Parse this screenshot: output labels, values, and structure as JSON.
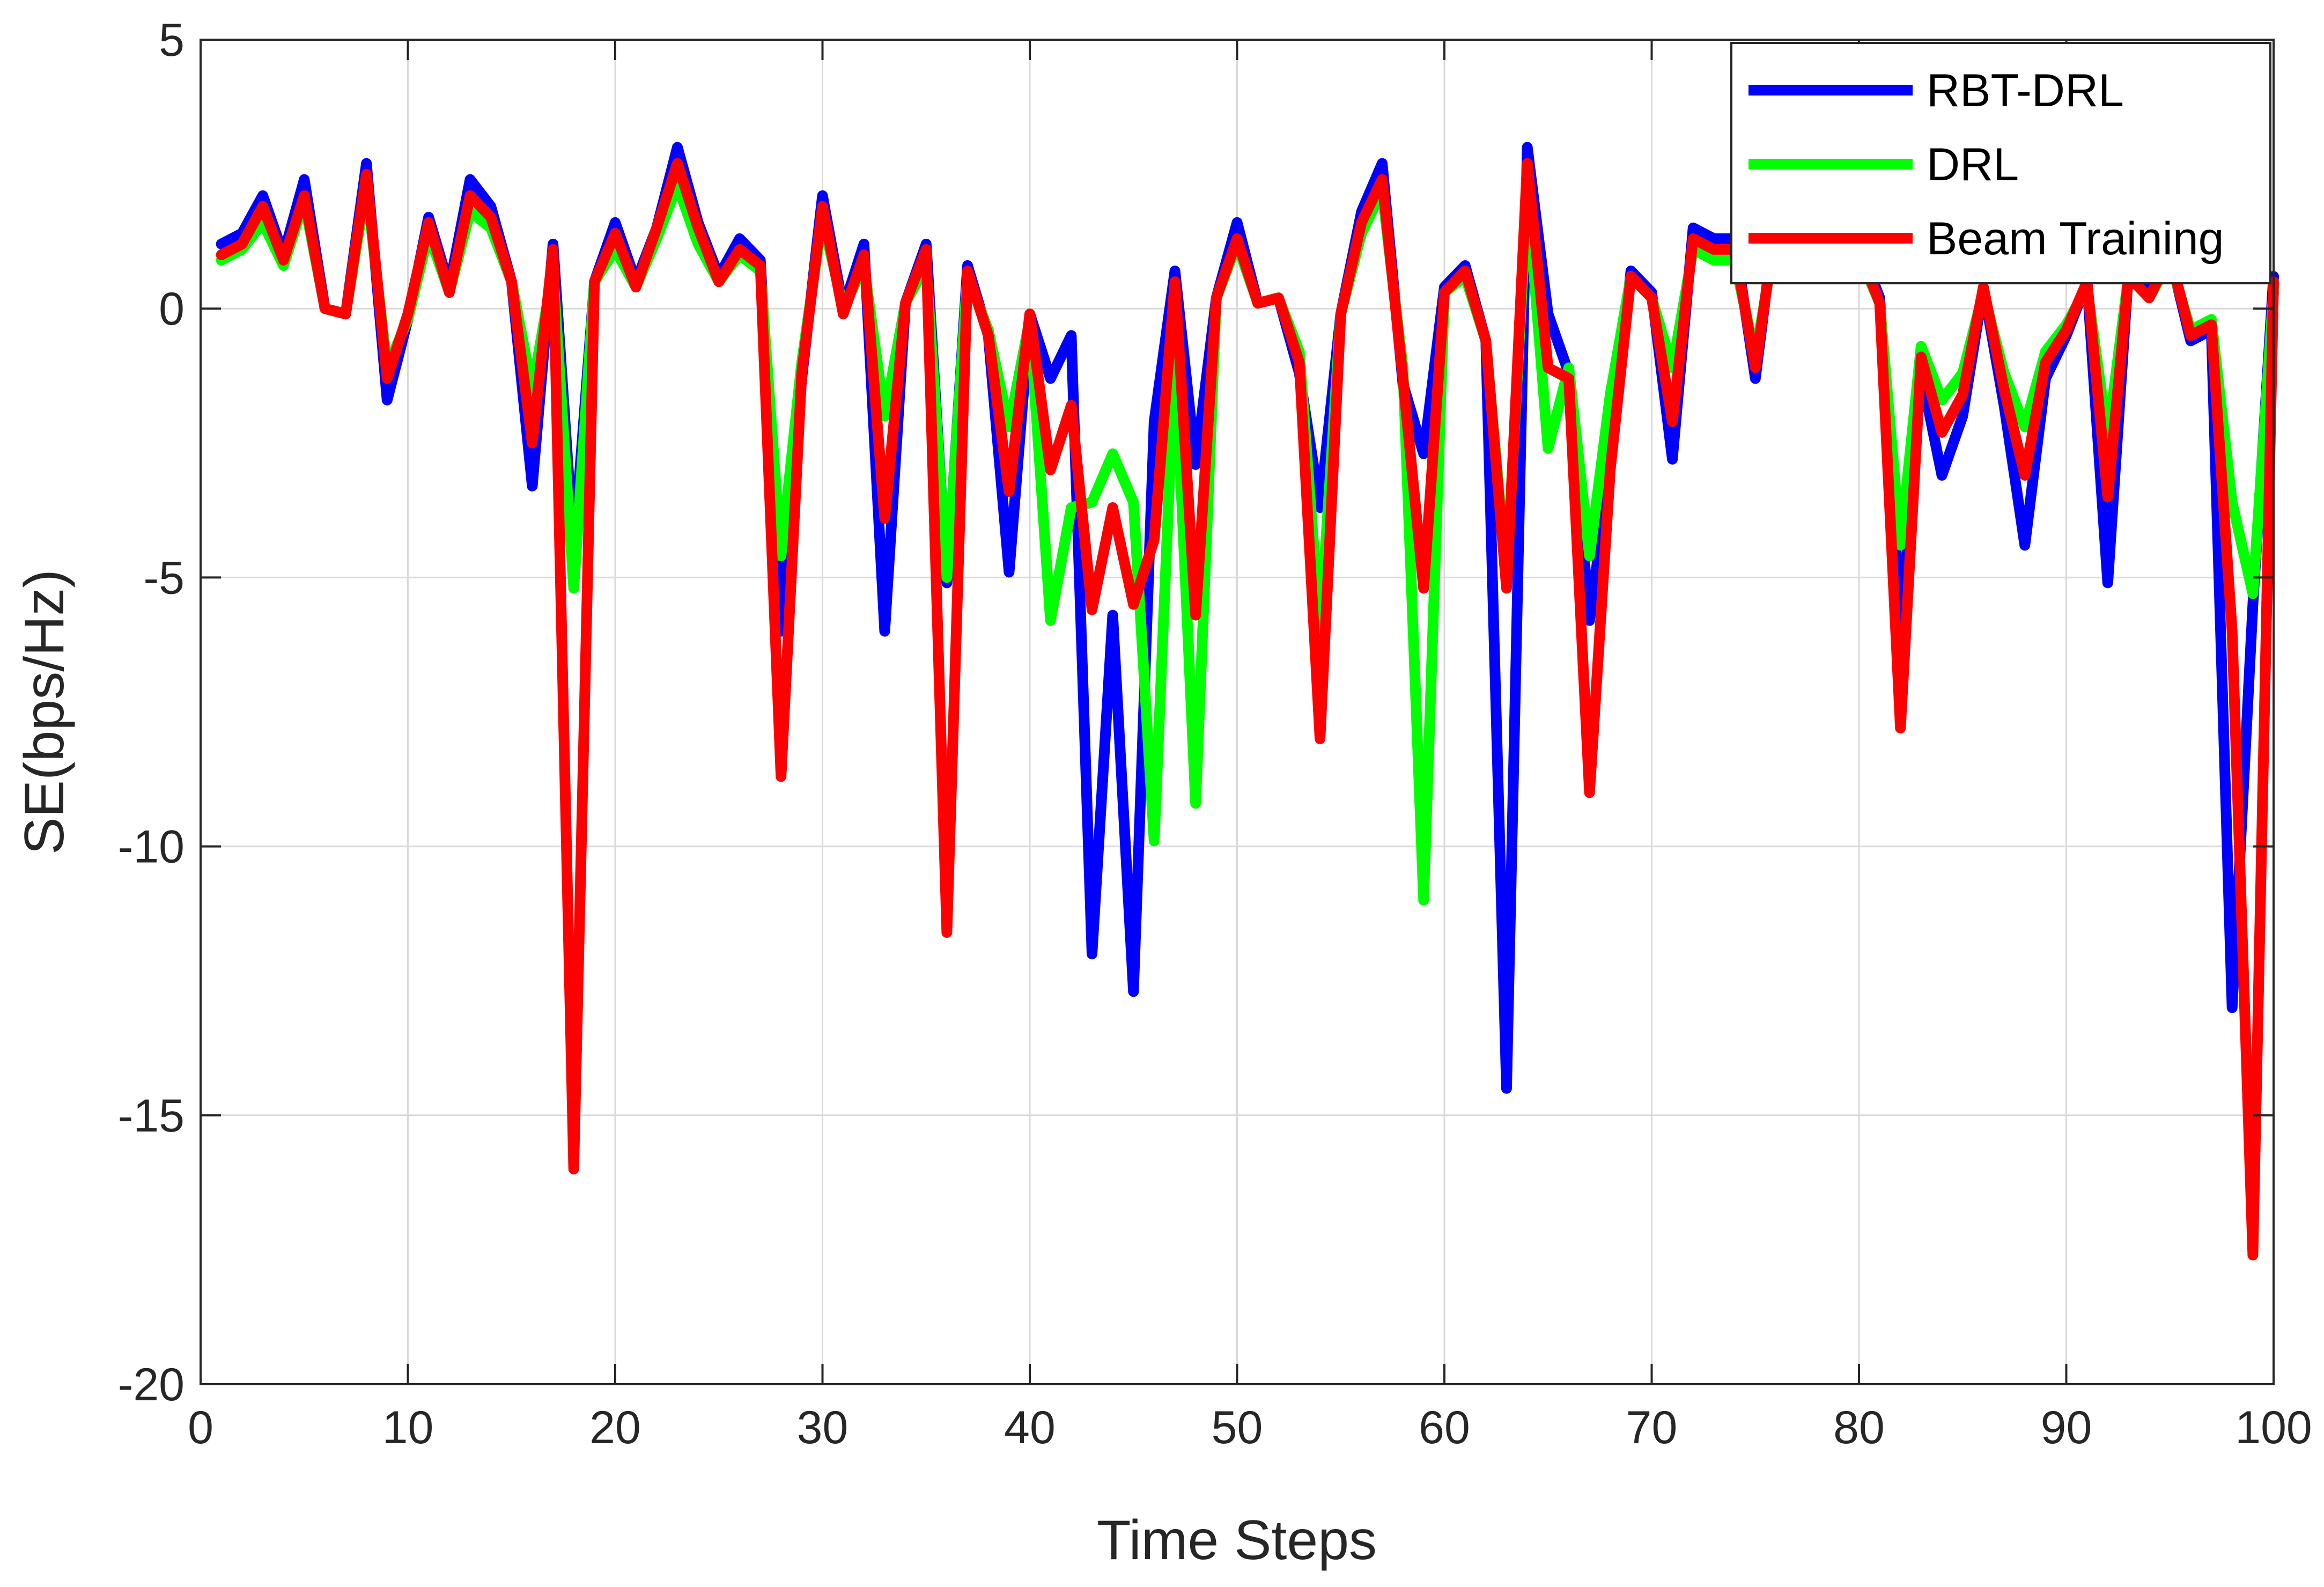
{
  "chart_data": {
    "type": "line",
    "xlabel": "Time Steps",
    "ylabel": "SE(bps/Hz)",
    "xlim": [
      0,
      100
    ],
    "ylim": [
      -20,
      5
    ],
    "xticks": [
      0,
      10,
      20,
      30,
      40,
      50,
      60,
      70,
      80,
      90,
      100
    ],
    "yticks": [
      5,
      0,
      -5,
      -10,
      -15,
      -20
    ],
    "grid": true,
    "legend_position": "top-right",
    "x": [
      1,
      2,
      3,
      4,
      5,
      6,
      7,
      8,
      9,
      10,
      11,
      12,
      13,
      14,
      15,
      16,
      17,
      18,
      19,
      20,
      21,
      22,
      23,
      24,
      25,
      26,
      27,
      28,
      29,
      30,
      31,
      32,
      33,
      34,
      35,
      36,
      37,
      38,
      39,
      40,
      41,
      42,
      43,
      44,
      45,
      46,
      47,
      48,
      49,
      50,
      51,
      52,
      53,
      54,
      55,
      56,
      57,
      58,
      59,
      60,
      61,
      62,
      63,
      64,
      65,
      66,
      67,
      68,
      69,
      70,
      71,
      72,
      73,
      74,
      75,
      76,
      77,
      78,
      79,
      80,
      81,
      82,
      83,
      84,
      85,
      86,
      87,
      88,
      89,
      90,
      91,
      92,
      93,
      94,
      95,
      96,
      97,
      98,
      99,
      100
    ],
    "series": [
      {
        "name": "RBT-DRL",
        "color": "#0000ff",
        "values": [
          1.2,
          1.4,
          2.1,
          1.0,
          2.4,
          0.0,
          -0.1,
          2.7,
          -1.7,
          -0.2,
          1.7,
          0.4,
          2.4,
          1.9,
          0.5,
          -3.3,
          1.2,
          -4.5,
          0.5,
          1.6,
          0.5,
          1.5,
          3.0,
          1.6,
          0.6,
          1.3,
          0.9,
          -6.0,
          -1.3,
          2.1,
          0.0,
          1.2,
          -6.0,
          0.1,
          1.2,
          -5.1,
          0.8,
          -0.5,
          -4.9,
          -0.1,
          -1.3,
          -0.5,
          -12.0,
          -5.7,
          -12.7,
          -2.1,
          0.7,
          -2.9,
          0.2,
          1.6,
          0.1,
          0.2,
          -1.2,
          -3.7,
          -0.1,
          1.8,
          2.7,
          -1.4,
          -2.7,
          0.4,
          0.8,
          -0.6,
          -14.5,
          3.0,
          -0.1,
          -1.2,
          -5.8,
          -2.9,
          0.7,
          0.3,
          -2.8,
          1.5,
          1.3,
          1.3,
          -1.3,
          1.8,
          1.7,
          1.2,
          0.9,
          1.2,
          0.2,
          -6.0,
          -1.2,
          -3.1,
          -2.0,
          0.4,
          -1.8,
          -4.4,
          -1.3,
          -0.5,
          0.5,
          -5.1,
          0.7,
          0.3,
          1.0,
          -0.6,
          -0.4,
          -13.0,
          -5.5,
          0.6
        ]
      },
      {
        "name": "DRL",
        "color": "#00ff00",
        "values": [
          0.9,
          1.1,
          1.6,
          0.8,
          2.0,
          0.0,
          -0.1,
          2.3,
          -1.1,
          -0.2,
          1.4,
          0.3,
          1.8,
          1.5,
          0.5,
          -1.5,
          0.7,
          -5.2,
          0.5,
          1.1,
          0.4,
          1.3,
          2.3,
          1.2,
          0.5,
          1.0,
          0.7,
          -4.6,
          -1.0,
          1.7,
          0.0,
          0.8,
          -2.0,
          0.1,
          0.8,
          -5.0,
          0.6,
          -0.4,
          -2.2,
          -0.2,
          -5.8,
          -3.7,
          -3.6,
          -2.7,
          -3.6,
          -9.9,
          -0.8,
          -9.2,
          0.2,
          1.2,
          0.1,
          0.2,
          -0.8,
          -6.0,
          -0.1,
          1.4,
          2.2,
          -1.1,
          -11.0,
          0.3,
          0.6,
          -0.6,
          -5.0,
          2.2,
          -2.6,
          -1.1,
          -4.6,
          -1.6,
          0.6,
          0.2,
          -1.1,
          1.1,
          0.9,
          0.9,
          -0.9,
          1.4,
          1.3,
          1.0,
          0.7,
          1.0,
          0.1,
          -4.4,
          -0.7,
          -1.7,
          -1.2,
          0.3,
          -1.2,
          -2.2,
          -0.8,
          -0.3,
          0.4,
          -2.4,
          0.6,
          0.2,
          0.9,
          -0.4,
          -0.2,
          -3.6,
          -5.3,
          0.3
        ]
      },
      {
        "name": "Beam Training",
        "color": "#ff0000",
        "values": [
          1.0,
          1.2,
          1.9,
          0.9,
          2.1,
          0.0,
          -0.1,
          2.5,
          -1.3,
          -0.1,
          1.6,
          0.3,
          2.1,
          1.7,
          0.5,
          -2.5,
          1.1,
          -16.0,
          0.5,
          1.4,
          0.4,
          1.5,
          2.7,
          1.5,
          0.5,
          1.1,
          0.8,
          -8.7,
          -1.2,
          1.9,
          -0.1,
          1.0,
          -3.9,
          0.1,
          1.1,
          -11.6,
          0.7,
          -0.5,
          -3.4,
          -0.1,
          -3.0,
          -1.8,
          -5.6,
          -3.7,
          -5.5,
          -4.3,
          0.5,
          -5.7,
          0.2,
          1.3,
          0.1,
          0.2,
          -1.0,
          -8.0,
          -0.1,
          1.6,
          2.4,
          -1.3,
          -5.2,
          0.3,
          0.7,
          -0.6,
          -5.2,
          2.7,
          -1.1,
          -1.3,
          -9.0,
          -3.0,
          0.6,
          0.2,
          -2.1,
          1.3,
          1.1,
          1.1,
          -1.1,
          1.6,
          1.5,
          1.1,
          0.8,
          1.1,
          0.1,
          -7.8,
          -0.9,
          -2.3,
          -1.6,
          0.4,
          -1.5,
          -3.1,
          -1.0,
          -0.4,
          0.5,
          -3.5,
          0.6,
          0.2,
          1.0,
          -0.5,
          -0.3,
          -6.0,
          -17.6,
          0.5
        ]
      }
    ]
  }
}
